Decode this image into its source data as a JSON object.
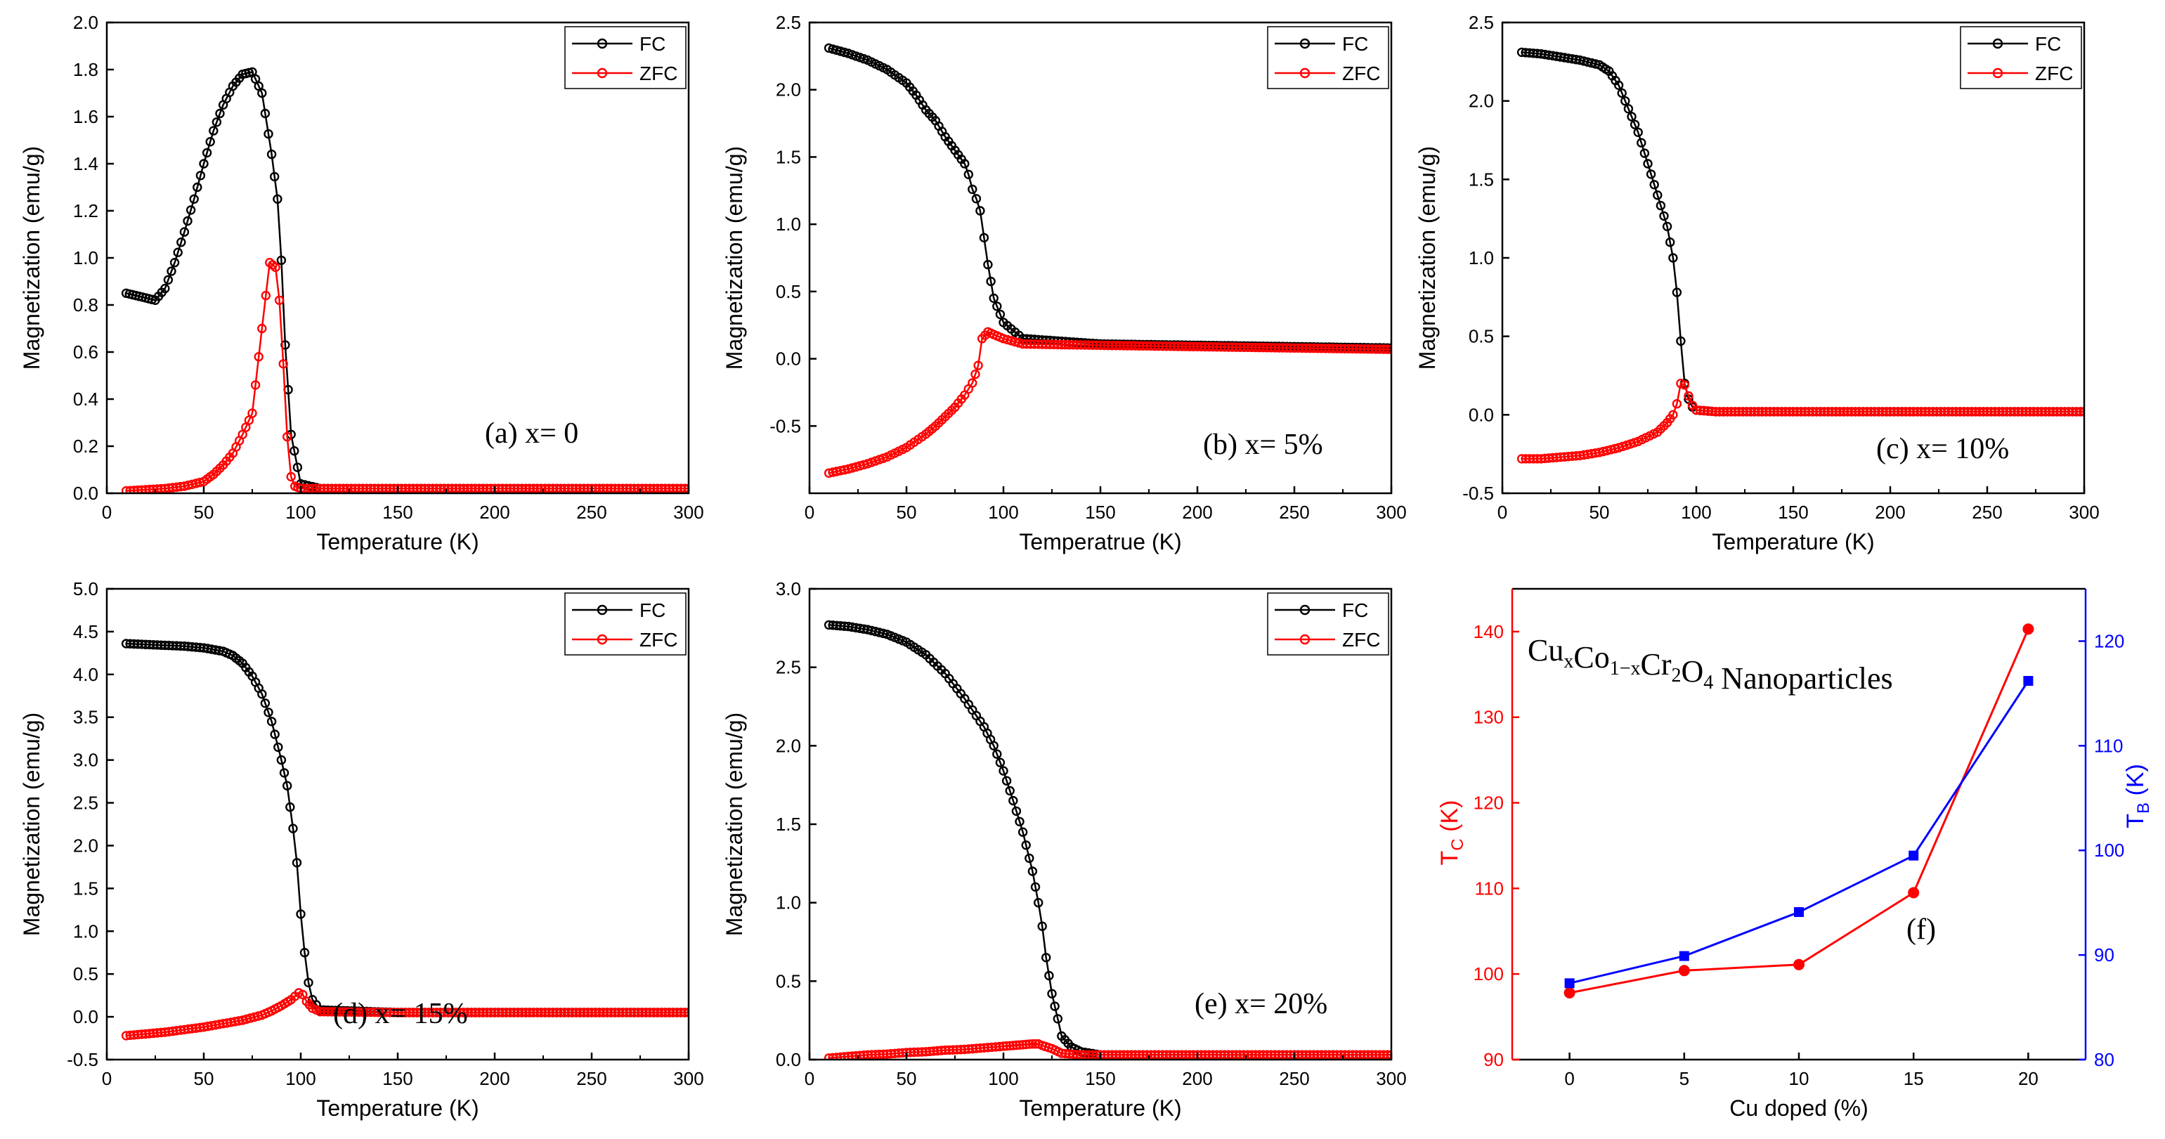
{
  "chart_data": [
    {
      "id": "a",
      "type": "scatter",
      "xlabel": "Temperature (K)",
      "ylabel": "Magnetization (emu/g)",
      "xlim": [
        0,
        300
      ],
      "ylim": [
        0,
        2.0
      ],
      "xticks": [
        0,
        50,
        100,
        150,
        200,
        250,
        300
      ],
      "yticks": [
        0.0,
        0.2,
        0.4,
        0.6,
        0.8,
        1.0,
        1.2,
        1.4,
        1.6,
        1.8,
        2.0
      ],
      "ytick_labels": [
        "0.0",
        "0.2",
        "0.4",
        "0.6",
        "0.8",
        "1.0",
        "1.2",
        "1.4",
        "1.6",
        "1.8",
        "2.0"
      ],
      "annotation": "(a) x= 0",
      "legend": [
        "FC",
        "ZFC"
      ],
      "legend_position": "top-right",
      "series": [
        {
          "name": "FC",
          "color": "#000000",
          "x": [
            10,
            15,
            20,
            25,
            30,
            35,
            40,
            45,
            50,
            55,
            60,
            65,
            70,
            75,
            80,
            85,
            88,
            90,
            92,
            95,
            100,
            110,
            150,
            200,
            250,
            300
          ],
          "y": [
            0.85,
            0.84,
            0.83,
            0.82,
            0.87,
            0.98,
            1.11,
            1.25,
            1.4,
            1.54,
            1.65,
            1.73,
            1.78,
            1.79,
            1.7,
            1.44,
            1.25,
            0.99,
            0.63,
            0.25,
            0.04,
            0.02,
            0.02,
            0.02,
            0.02,
            0.02
          ]
        },
        {
          "name": "ZFC",
          "color": "#ff0000",
          "x": [
            10,
            20,
            30,
            40,
            50,
            55,
            60,
            65,
            70,
            75,
            80,
            84,
            87,
            89,
            91,
            93,
            95,
            97,
            100,
            110,
            150,
            200,
            250,
            300
          ],
          "y": [
            0.01,
            0.015,
            0.02,
            0.03,
            0.05,
            0.08,
            0.12,
            0.17,
            0.25,
            0.34,
            0.7,
            0.98,
            0.96,
            0.82,
            0.55,
            0.24,
            0.07,
            0.03,
            0.02,
            0.02,
            0.02,
            0.02,
            0.02,
            0.02
          ]
        }
      ]
    },
    {
      "id": "b",
      "type": "scatter",
      "xlabel": "Temperatrue (K)",
      "ylabel": "Magnetization (emu/g)",
      "xlim": [
        0,
        300
      ],
      "ylim": [
        -1.0,
        2.5
      ],
      "xticks": [
        0,
        50,
        100,
        150,
        200,
        250,
        300
      ],
      "yticks": [
        -0.5,
        0.0,
        0.5,
        1.0,
        1.5,
        2.0,
        2.5
      ],
      "ytick_labels": [
        "-0.5",
        "0.0",
        "0.5",
        "1.0",
        "1.5",
        "2.0",
        "2.5"
      ],
      "annotation": "(b) x= 5%",
      "legend": [
        "FC",
        "ZFC"
      ],
      "legend_position": "top-right",
      "series": [
        {
          "name": "FC",
          "color": "#000000",
          "x": [
            10,
            20,
            30,
            40,
            50,
            55,
            60,
            65,
            70,
            75,
            80,
            82,
            84,
            86,
            88,
            90,
            92,
            95,
            100,
            110,
            150,
            200,
            250,
            300
          ],
          "y": [
            2.31,
            2.27,
            2.22,
            2.15,
            2.05,
            1.96,
            1.85,
            1.77,
            1.65,
            1.55,
            1.45,
            1.37,
            1.26,
            1.19,
            1.1,
            0.9,
            0.7,
            0.45,
            0.27,
            0.15,
            0.11,
            0.1,
            0.09,
            0.08
          ]
        },
        {
          "name": "ZFC",
          "color": "#ff0000",
          "x": [
            10,
            20,
            30,
            40,
            50,
            60,
            65,
            70,
            75,
            80,
            84,
            87,
            89,
            92,
            95,
            100,
            110,
            150,
            200,
            250,
            300
          ],
          "y": [
            -0.85,
            -0.82,
            -0.78,
            -0.73,
            -0.66,
            -0.56,
            -0.5,
            -0.43,
            -0.36,
            -0.27,
            -0.18,
            -0.05,
            0.15,
            0.2,
            0.18,
            0.15,
            0.11,
            0.1,
            0.09,
            0.08,
            0.07
          ]
        }
      ]
    },
    {
      "id": "c",
      "type": "scatter",
      "xlabel": "Temperature (K)",
      "ylabel": "Magnetization (emu/g)",
      "xlim": [
        0,
        300
      ],
      "ylim": [
        -0.5,
        2.5
      ],
      "xticks": [
        0,
        50,
        100,
        150,
        200,
        250,
        300
      ],
      "yticks": [
        -0.5,
        0.0,
        0.5,
        1.0,
        1.5,
        2.0,
        2.5
      ],
      "ytick_labels": [
        "-0.5",
        "0.0",
        "0.5",
        "1.0",
        "1.5",
        "2.0",
        "2.5"
      ],
      "annotation": "(c) x= 10%",
      "legend": [
        "FC",
        "ZFC"
      ],
      "legend_position": "top-right",
      "series": [
        {
          "name": "FC",
          "color": "#000000",
          "x": [
            10,
            20,
            30,
            40,
            50,
            55,
            60,
            65,
            70,
            75,
            80,
            85,
            88,
            90,
            92,
            94,
            96,
            98,
            100,
            110,
            150,
            200,
            250,
            300
          ],
          "y": [
            2.31,
            2.3,
            2.28,
            2.26,
            2.23,
            2.19,
            2.1,
            1.95,
            1.8,
            1.6,
            1.4,
            1.2,
            1.0,
            0.78,
            0.47,
            0.2,
            0.1,
            0.05,
            0.03,
            0.02,
            0.02,
            0.02,
            0.02,
            0.02
          ]
        },
        {
          "name": "ZFC",
          "color": "#ff0000",
          "x": [
            10,
            20,
            30,
            40,
            50,
            60,
            70,
            80,
            85,
            88,
            90,
            92,
            94,
            96,
            98,
            100,
            110,
            150,
            200,
            250,
            300
          ],
          "y": [
            -0.28,
            -0.28,
            -0.27,
            -0.26,
            -0.24,
            -0.21,
            -0.17,
            -0.11,
            -0.05,
            0.0,
            0.07,
            0.2,
            0.19,
            0.12,
            0.06,
            0.03,
            0.02,
            0.02,
            0.02,
            0.02,
            0.02
          ]
        }
      ]
    },
    {
      "id": "d",
      "type": "scatter",
      "xlabel": "Temperature (K)",
      "ylabel": "Magnetization (emu/g)",
      "xlim": [
        0,
        300
      ],
      "ylim": [
        -0.5,
        5.0
      ],
      "xticks": [
        0,
        50,
        100,
        150,
        200,
        250,
        300
      ],
      "yticks": [
        -0.5,
        0.0,
        0.5,
        1.0,
        1.5,
        2.0,
        2.5,
        3.0,
        3.5,
        4.0,
        4.5,
        5.0
      ],
      "ytick_labels": [
        "-0.5",
        "0.0",
        "0.5",
        "1.0",
        "1.5",
        "2.0",
        "2.5",
        "3.0",
        "3.5",
        "4.0",
        "4.5",
        "5.0"
      ],
      "annotation": "(d) x= 15%",
      "legend": [
        "FC",
        "ZFC"
      ],
      "legend_position": "top-right",
      "series": [
        {
          "name": "FC",
          "color": "#000000",
          "x": [
            10,
            20,
            30,
            40,
            50,
            60,
            65,
            70,
            75,
            80,
            85,
            90,
            93,
            96,
            98,
            100,
            102,
            104,
            106,
            110,
            150,
            200,
            250,
            300
          ],
          "y": [
            4.36,
            4.35,
            4.34,
            4.33,
            4.31,
            4.27,
            4.22,
            4.13,
            3.98,
            3.77,
            3.45,
            3.0,
            2.7,
            2.2,
            1.8,
            1.2,
            0.75,
            0.4,
            0.2,
            0.08,
            0.05,
            0.05,
            0.05,
            0.05
          ]
        },
        {
          "name": "ZFC",
          "color": "#ff0000",
          "x": [
            10,
            20,
            30,
            40,
            50,
            60,
            70,
            80,
            85,
            90,
            95,
            99,
            101,
            103,
            106,
            110,
            150,
            200,
            250,
            300
          ],
          "y": [
            -0.22,
            -0.2,
            -0.18,
            -0.15,
            -0.12,
            -0.08,
            -0.04,
            0.02,
            0.07,
            0.13,
            0.2,
            0.28,
            0.26,
            0.18,
            0.1,
            0.06,
            0.05,
            0.05,
            0.05,
            0.05
          ]
        }
      ]
    },
    {
      "id": "e",
      "type": "scatter",
      "xlabel": "Temperature (K)",
      "ylabel": "Magnetization (emu/g)",
      "xlim": [
        0,
        300
      ],
      "ylim": [
        0,
        3.0
      ],
      "xticks": [
        0,
        50,
        100,
        150,
        200,
        250,
        300
      ],
      "yticks": [
        0.0,
        0.5,
        1.0,
        1.5,
        2.0,
        2.5,
        3.0
      ],
      "ytick_labels": [
        "0.0",
        "0.5",
        "1.0",
        "1.5",
        "2.0",
        "2.5",
        "3.0"
      ],
      "annotation": "(e) x= 20%",
      "legend": [
        "FC",
        "ZFC"
      ],
      "legend_position": "top-right",
      "series": [
        {
          "name": "FC",
          "color": "#000000",
          "x": [
            10,
            20,
            30,
            40,
            50,
            60,
            70,
            80,
            90,
            95,
            100,
            105,
            110,
            115,
            118,
            120,
            122,
            125,
            128,
            130,
            135,
            140,
            150,
            200,
            250,
            300
          ],
          "y": [
            2.77,
            2.76,
            2.74,
            2.71,
            2.66,
            2.58,
            2.46,
            2.3,
            2.12,
            2.0,
            1.84,
            1.65,
            1.45,
            1.2,
            1.0,
            0.85,
            0.65,
            0.42,
            0.26,
            0.15,
            0.08,
            0.05,
            0.03,
            0.03,
            0.03,
            0.03
          ]
        },
        {
          "name": "ZFC",
          "color": "#ff0000",
          "x": [
            10,
            20,
            30,
            40,
            50,
            60,
            70,
            80,
            90,
            100,
            105,
            110,
            115,
            118,
            120,
            125,
            130,
            140,
            150,
            200,
            250,
            300
          ],
          "y": [
            0.01,
            0.02,
            0.03,
            0.035,
            0.045,
            0.05,
            0.06,
            0.065,
            0.075,
            0.085,
            0.09,
            0.095,
            0.1,
            0.1,
            0.09,
            0.07,
            0.04,
            0.03,
            0.03,
            0.03,
            0.03,
            0.03
          ]
        }
      ]
    },
    {
      "id": "f",
      "type": "line",
      "title": "CuxCo1-xCr2O4 Nanoparticles",
      "xlabel": "Cu doped (%)",
      "ylabel_left": "TC (K)",
      "ylabel_right": "TB (K)",
      "xlim": [
        -2.5,
        22.5
      ],
      "ylim_left": [
        90,
        145
      ],
      "ylim_right": [
        80,
        125
      ],
      "xticks": [
        0,
        5,
        10,
        15,
        20
      ],
      "yticks_left": [
        90,
        100,
        110,
        120,
        130,
        140
      ],
      "yticks_right": [
        80,
        90,
        100,
        110,
        120
      ],
      "annotation": "(f)",
      "series": [
        {
          "name": "TC",
          "axis": "left",
          "color": "#ff0000",
          "marker": "circle",
          "x": [
            0,
            5,
            10,
            15,
            20
          ],
          "y": [
            97.8,
            100.4,
            101.1,
            109.5,
            140.3
          ]
        },
        {
          "name": "TB",
          "axis": "right",
          "color": "#0000ff",
          "marker": "square",
          "x": [
            0,
            5,
            10,
            15,
            20
          ],
          "y": [
            87.3,
            89.9,
            94.1,
            99.5,
            116.2
          ]
        }
      ]
    }
  ],
  "panel_f_labels": {
    "title_base_cu": "Cu",
    "title_sub_x": "x",
    "title_base_co": "Co",
    "title_sub_1mx": "1−x",
    "title_base_cr": "Cr",
    "title_sub_2": "2",
    "title_base_o": "O",
    "title_sub_4": "4",
    "title_tail": " Nanoparticles",
    "left_base": "T",
    "left_sub": "C",
    "left_unit": " (K)",
    "right_base": "T",
    "right_sub": "B",
    "right_unit": " (K)"
  }
}
